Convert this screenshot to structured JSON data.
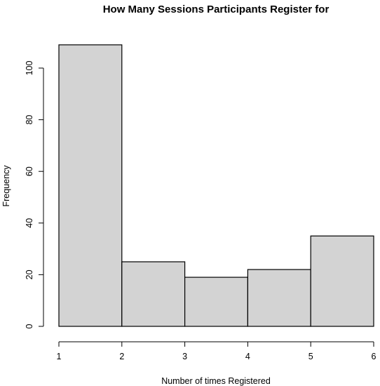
{
  "chart_data": {
    "type": "bar",
    "title": "How Many Sessions Participants Register for",
    "xlabel": "Number of times Registered",
    "ylabel": "Frequency",
    "bins": [
      [
        1,
        2
      ],
      [
        2,
        3
      ],
      [
        3,
        4
      ],
      [
        4,
        5
      ],
      [
        5,
        6
      ]
    ],
    "values": [
      109,
      25,
      19,
      22,
      35
    ],
    "xlim": [
      1,
      6
    ],
    "ylim": [
      0,
      109
    ],
    "x_ticks": [
      "1",
      "2",
      "3",
      "4",
      "5",
      "6"
    ],
    "y_ticks": [
      "0",
      "20",
      "40",
      "60",
      "80",
      "100"
    ],
    "grid": false,
    "bar_color": "#d3d3d3",
    "edge_color": "#000000"
  }
}
